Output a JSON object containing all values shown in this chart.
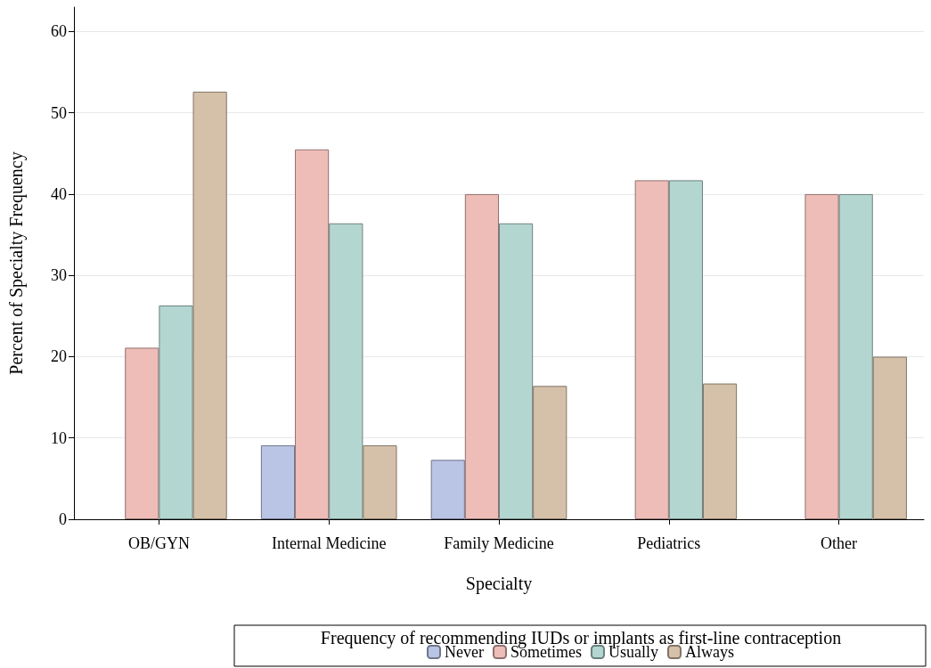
{
  "chart_data": {
    "type": "bar",
    "xlabel": "Specialty",
    "ylabel": "Percent of Specialty Frequency",
    "legend_title": "Frequency of recommending IUDs or implants as first-line contraception",
    "categories": [
      "OB/GYN",
      "Internal Medicine",
      "Family Medicine",
      "Pediatrics",
      "Other"
    ],
    "series": [
      {
        "name": "Never",
        "color": "#bac5e5",
        "values": [
          null,
          9.1,
          7.3,
          null,
          null
        ]
      },
      {
        "name": "Sometimes",
        "color": "#efbdb8",
        "values": [
          21.1,
          45.5,
          40,
          41.7,
          40
        ]
      },
      {
        "name": "Usually",
        "color": "#b4d6d1",
        "values": [
          26.3,
          36.4,
          36.4,
          41.7,
          40
        ]
      },
      {
        "name": "Always",
        "color": "#d5c1aa",
        "values": [
          52.6,
          9.1,
          16.4,
          16.7,
          20
        ]
      }
    ],
    "ylim": [
      0,
      63
    ],
    "yticks": [
      0,
      10,
      20,
      30,
      40,
      50,
      60
    ],
    "grid": "y",
    "legend": "bottom"
  }
}
